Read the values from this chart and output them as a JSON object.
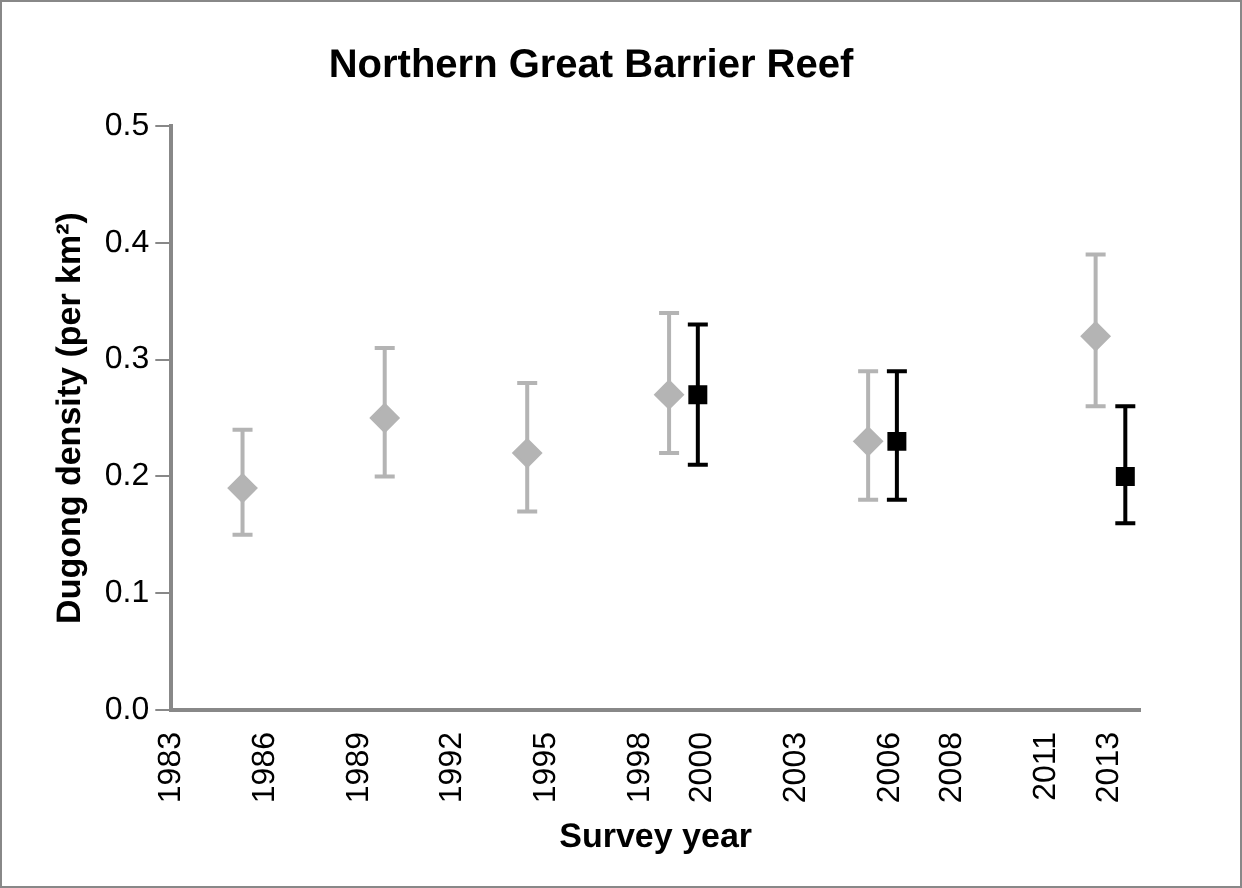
{
  "chart_data": {
    "type": "scatter",
    "title": "Northern Great Barrier Reef",
    "xlabel": "Survey year",
    "ylabel": "Dugong density (per km²)",
    "xlim": [
      1983,
      2014
    ],
    "xticks": [
      1983,
      1986,
      1989,
      1992,
      1995,
      1998,
      2000,
      2003,
      2006,
      2008,
      2011,
      2013
    ],
    "ylim": [
      0,
      0.5
    ],
    "yticks": [
      {
        "value": 0,
        "label": "0.0"
      },
      0.1,
      0.2,
      0.3,
      0.4,
      0.5
    ],
    "grid": false,
    "legend": false,
    "series": [
      {
        "color": "#b4b4b4",
        "marker": "diamond",
        "x": [
          1985.28,
          1989.83,
          1994.39,
          1998.93,
          2005.3,
          2012.58
        ],
        "values": [
          0.19,
          0.25,
          0.22,
          0.27,
          0.23,
          0.32
        ],
        "errors": [
          [
            0.15,
            0.24
          ],
          [
            0.2,
            0.31
          ],
          [
            0.17,
            0.28
          ],
          [
            0.22,
            0.34
          ],
          [
            0.18,
            0.29
          ],
          [
            0.26,
            0.39
          ]
        ]
      },
      {
        "color": "#000000",
        "marker": "square",
        "x": [
          1999.85,
          2006.22,
          2013.53
        ],
        "values": [
          0.27,
          0.23,
          0.2
        ],
        "errors": [
          [
            0.21,
            0.33
          ],
          [
            0.18,
            0.29
          ],
          [
            0.16,
            0.26
          ]
        ]
      }
    ]
  }
}
